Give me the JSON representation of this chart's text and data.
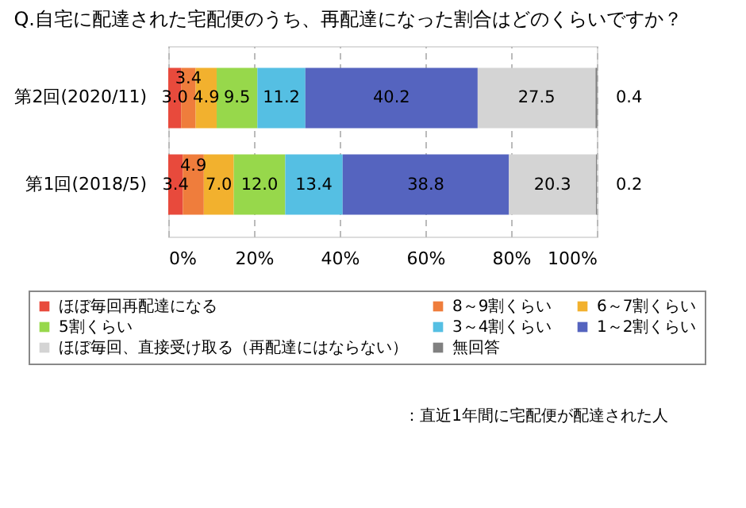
{
  "chart_data": {
    "type": "bar",
    "orientation": "horizontal",
    "stacked": true,
    "title": "Q.自宅に配達された宅配便のうち、再配達になった割合はどのくらいですか？",
    "categories": [
      "第2回(2020/11)",
      "第1回(2018/5)"
    ],
    "series": [
      {
        "name": "ほぼ毎回再配達になる",
        "color": "#e84a3c",
        "values": [
          3.0,
          3.4
        ],
        "value_labels": [
          "3.0",
          "3.4"
        ]
      },
      {
        "name": "8～9割くらい",
        "color": "#ef7d3c",
        "values": [
          3.4,
          4.9
        ],
        "value_labels": [
          "3.4",
          "4.9"
        ]
      },
      {
        "name": "6～7割くらい",
        "color": "#f2b12e",
        "values": [
          4.9,
          7.0
        ],
        "value_labels": [
          "4.9",
          "7.0"
        ]
      },
      {
        "name": "5割くらい",
        "color": "#97d84b",
        "values": [
          9.5,
          12.0
        ],
        "value_labels": [
          "9.5",
          "12.0"
        ]
      },
      {
        "name": "3～4割くらい",
        "color": "#55bfe3",
        "values": [
          11.2,
          13.4
        ],
        "value_labels": [
          "11.2",
          "13.4"
        ]
      },
      {
        "name": "1～2割くらい",
        "color": "#5564bf",
        "values": [
          40.2,
          38.8
        ],
        "value_labels": [
          "40.2",
          "38.8"
        ]
      },
      {
        "name": "ほぼ毎回、直接受け取る（再配達にはならない）",
        "color": "#d4d4d4",
        "values": [
          27.5,
          20.3
        ],
        "value_labels": [
          "27.5",
          "20.3"
        ]
      },
      {
        "name": "無回答",
        "color": "#808080",
        "values": [
          0.4,
          0.2
        ],
        "value_labels": [
          "0.4",
          "0.2"
        ]
      }
    ],
    "xlim": [
      0,
      100
    ],
    "xticks": [
      {
        "value": 0,
        "label": "0%"
      },
      {
        "value": 20,
        "label": "20%"
      },
      {
        "value": 40,
        "label": "40%"
      },
      {
        "value": 60,
        "label": "60%"
      },
      {
        "value": 80,
        "label": "80%"
      },
      {
        "value": 100,
        "label": "100%"
      }
    ],
    "grid": "x",
    "legend": "bottom",
    "annotations": [
      "：直近1年間に宅配便が配達された人"
    ]
  }
}
